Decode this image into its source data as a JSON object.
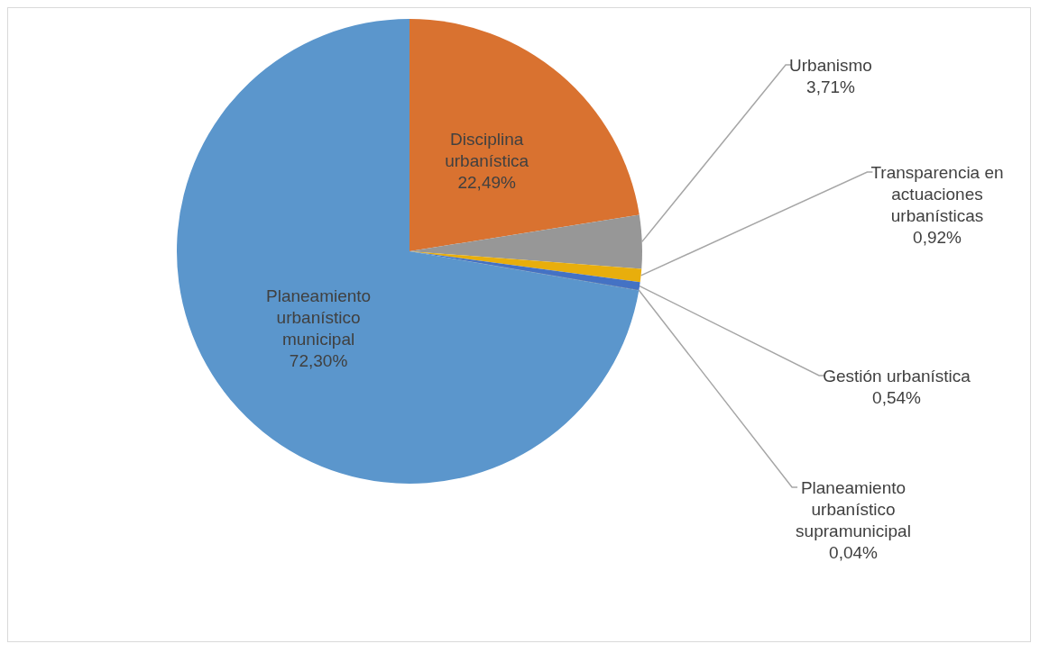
{
  "chart_data": {
    "type": "pie",
    "categories": [
      "Disciplina urbanística",
      "Urbanismo",
      "Transparencia en actuaciones urbanísticas",
      "Gestión urbanística",
      "Planeamiento urbanístico supramunicipal",
      "Planeamiento urbanístico municipal"
    ],
    "values": [
      22.49,
      3.71,
      0.92,
      0.54,
      0.04,
      72.3
    ],
    "value_labels": [
      "22,49%",
      "3,71%",
      "0,92%",
      "0,54%",
      "0,04%",
      "72,30%"
    ],
    "colors": [
      "#d97230",
      "#979797",
      "#e8ae0c",
      "#4472c4",
      "#264478",
      "#5b96cc"
    ],
    "legend": false
  }
}
